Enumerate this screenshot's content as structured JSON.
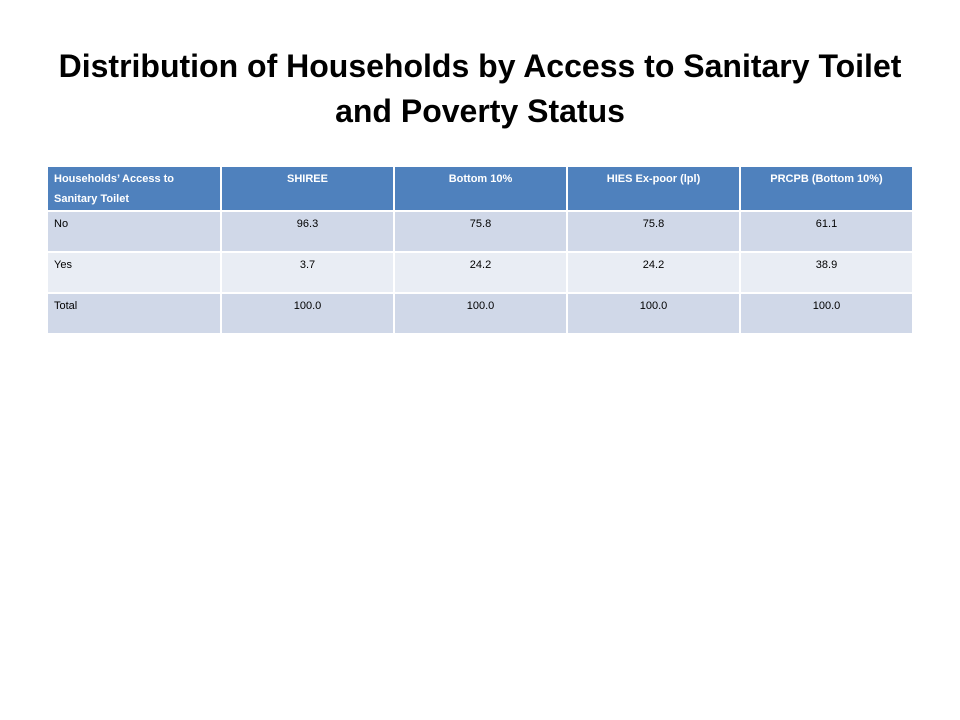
{
  "slide": {
    "title_line1": "Distribution of Households by Access to Sanitary Toilet",
    "title_line2": "and Poverty Status"
  },
  "table": {
    "headers": [
      "Households’ Access to Sanitary Toilet",
      "SHIREE",
      "Bottom 10%",
      "HIES Ex-poor (lpl)",
      "PRCPB (Bottom 10%)"
    ],
    "rows": [
      [
        "No",
        "96.3",
        "75.8",
        "75.8",
        "61.1"
      ],
      [
        "Yes",
        "3.7",
        "24.2",
        "24.2",
        "38.9"
      ],
      [
        "Total",
        "100.0",
        "100.0",
        "100.0",
        "100.0"
      ]
    ],
    "colors": {
      "header_bg": "#4f81bd",
      "row_odd_bg": "#d0d8e8",
      "row_even_bg": "#e9edf4"
    }
  }
}
